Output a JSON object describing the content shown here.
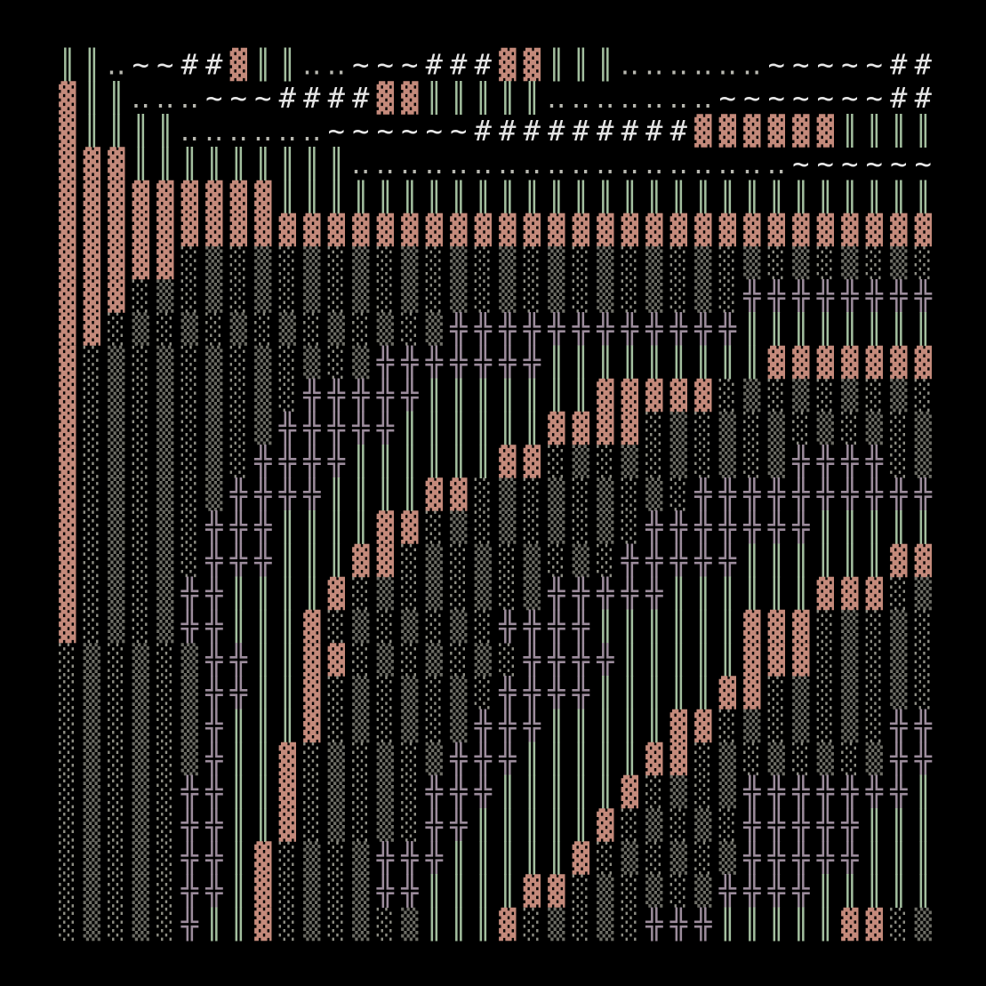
{
  "palette": {
    "▓": "#c48a7b",
    "║": "#a3bf9f",
    "‥": "#b8b8b0",
    "~": "#e6e6e6",
    "#": "#e6e6e6",
    "╬": "#9c8c9c",
    "░": "#8e8e84",
    "▒": "#6e6e66"
  },
  "grid": [
    [
      "║",
      "║",
      "‥",
      "~",
      "~",
      "#",
      "#",
      "▓",
      "║",
      "║",
      "‥",
      "‥",
      "~",
      "~",
      "~",
      "#",
      "#",
      "#",
      "▓",
      "▓",
      "║",
      "║",
      "║",
      "‥",
      "‥",
      "‥",
      "‥",
      "‥",
      "‥",
      "~",
      "~",
      "~",
      "~",
      "~",
      "#",
      "#"
    ],
    [
      "▓",
      "║",
      "║",
      "‥",
      "‥",
      "‥",
      "~",
      "~",
      "~",
      "#",
      "#",
      "#",
      "#",
      "▓",
      "▓",
      "║",
      "║",
      "║",
      "║",
      "║",
      "‥",
      "‥",
      "‥",
      "‥",
      "‥",
      "‥",
      "‥",
      "~",
      "~",
      "~",
      "~",
      "~",
      "~",
      "~",
      "#",
      "#"
    ],
    [
      "▓",
      "║",
      "║",
      "║",
      "║",
      "‥",
      "‥",
      "‥",
      "‥",
      "‥",
      "‥",
      "~",
      "~",
      "~",
      "~",
      "~",
      "~",
      "#",
      "#",
      "#",
      "#",
      "#",
      "#",
      "#",
      "#",
      "#",
      "▓",
      "▓",
      "▓",
      "▓",
      "▓",
      "▓",
      "║",
      "║",
      "║",
      "║"
    ],
    [
      "▓",
      "▓",
      "▓",
      "║",
      "║",
      "║",
      "║",
      "║",
      "║",
      "║",
      "║",
      "║",
      "‥",
      "‥",
      "‥",
      "‥",
      "‥",
      "‥",
      "‥",
      "‥",
      "‥",
      "‥",
      "‥",
      "‥",
      "‥",
      "‥",
      "‥",
      "‥",
      "‥",
      "‥",
      "~",
      "~",
      "~",
      "~",
      "~",
      "~"
    ],
    [
      "▓",
      "▓",
      "▓",
      "▓",
      "▓",
      "▓",
      "▓",
      "▓",
      "▓",
      "║",
      "║",
      "║",
      "║",
      "║",
      "║",
      "║",
      "║",
      "║",
      "║",
      "║",
      "║",
      "║",
      "║",
      "║",
      "║",
      "║",
      "║",
      "║",
      "║",
      "║",
      "║",
      "║",
      "║",
      "║",
      "║",
      "║"
    ],
    [
      "▓",
      "▓",
      "▓",
      "▓",
      "▓",
      "▓",
      "▓",
      "▓",
      "▓",
      "▓",
      "▓",
      "▓",
      "▓",
      "▓",
      "▓",
      "▓",
      "▓",
      "▓",
      "▓",
      "▓",
      "▓",
      "▓",
      "▓",
      "▓",
      "▓",
      "▓",
      "▓",
      "▓",
      "▓",
      "▓",
      "▓",
      "▓",
      "▓",
      "▓",
      "▓",
      "▓"
    ],
    [
      "▓",
      "▓",
      "▓",
      "▓",
      "▓",
      "░",
      "▒",
      "░",
      "▒",
      "░",
      "▒",
      "░",
      "▒",
      "░",
      "▒",
      "░",
      "▒",
      "░",
      "▒",
      "░",
      "▒",
      "░",
      "▒",
      "░",
      "▒",
      "░",
      "▒",
      "░",
      "▒",
      "░",
      "▒",
      "░",
      "▒",
      "░",
      "▒",
      "░"
    ],
    [
      "▓",
      "▓",
      "▓",
      "░",
      "▒",
      "░",
      "▒",
      "░",
      "▒",
      "░",
      "▒",
      "░",
      "▒",
      "░",
      "▒",
      "░",
      "▒",
      "░",
      "▒",
      "░",
      "▒",
      "░",
      "▒",
      "░",
      "▒",
      "░",
      "▒",
      "░",
      "╬",
      "╬",
      "╬",
      "╬",
      "╬",
      "╬",
      "╬",
      "╬"
    ],
    [
      "▓",
      "▓",
      "░",
      "▒",
      "░",
      "▒",
      "░",
      "▒",
      "░",
      "▒",
      "░",
      "▒",
      "░",
      "▒",
      "░",
      "▒",
      "╬",
      "╬",
      "╬",
      "╬",
      "╬",
      "╬",
      "╬",
      "╬",
      "╬",
      "╬",
      "╬",
      "╬",
      "║",
      "║",
      "║",
      "║",
      "║",
      "║",
      "║",
      "║"
    ],
    [
      "▓",
      "░",
      "▒",
      "░",
      "▒",
      "░",
      "▒",
      "░",
      "▒",
      "░",
      "▒",
      "░",
      "▒",
      "╬",
      "╬",
      "╬",
      "╬",
      "╬",
      "╬",
      "╬",
      "║",
      "║",
      "║",
      "║",
      "║",
      "║",
      "║",
      "║",
      "║",
      "▓",
      "▓",
      "▓",
      "▓",
      "▓",
      "▓",
      "▓"
    ],
    [
      "▓",
      "░",
      "▒",
      "░",
      "▒",
      "░",
      "▒",
      "░",
      "▒",
      "░",
      "╬",
      "╬",
      "╬",
      "╬",
      "╬",
      "║",
      "║",
      "║",
      "║",
      "║",
      "║",
      "║",
      "▓",
      "▓",
      "▓",
      "▓",
      "▓",
      "░",
      "▒",
      "░",
      "▒",
      "░",
      "▒",
      "░",
      "▒",
      "░"
    ],
    [
      "▓",
      "░",
      "▒",
      "░",
      "▒",
      "░",
      "▒",
      "░",
      "▒",
      "╬",
      "╬",
      "╬",
      "╬",
      "╬",
      "║",
      "║",
      "║",
      "║",
      "║",
      "║",
      "▓",
      "▓",
      "▓",
      "▓",
      "░",
      "▒",
      "░",
      "▒",
      "░",
      "▒",
      "░",
      "▒",
      "░",
      "▒",
      "░",
      "▒"
    ],
    [
      "▓",
      "░",
      "▒",
      "░",
      "▒",
      "░",
      "▒",
      "░",
      "╬",
      "╬",
      "╬",
      "╬",
      "║",
      "║",
      "║",
      "║",
      "║",
      "║",
      "▓",
      "▓",
      "░",
      "▒",
      "░",
      "▒",
      "░",
      "▒",
      "░",
      "▒",
      "░",
      "▒",
      "╬",
      "╬",
      "╬",
      "╬",
      "░",
      "▒"
    ],
    [
      "▓",
      "░",
      "▒",
      "░",
      "▒",
      "░",
      "▒",
      "╬",
      "╬",
      "╬",
      "╬",
      "║",
      "║",
      "║",
      "║",
      "▓",
      "▓",
      "░",
      "▒",
      "░",
      "▒",
      "░",
      "▒",
      "░",
      "▒",
      "░",
      "╬",
      "╬",
      "╬",
      "╬",
      "╬",
      "╬",
      "╬",
      "╬",
      "╬",
      "╬"
    ],
    [
      "▓",
      "░",
      "▒",
      "░",
      "▒",
      "░",
      "╬",
      "╬",
      "╬",
      "║",
      "║",
      "║",
      "║",
      "▓",
      "▓",
      "░",
      "▒",
      "░",
      "▒",
      "░",
      "▒",
      "░",
      "▒",
      "░",
      "╬",
      "╬",
      "╬",
      "╬",
      "╬",
      "╬",
      "╬",
      "║",
      "║",
      "║",
      "║",
      "║"
    ],
    [
      "▓",
      "░",
      "▒",
      "░",
      "▒",
      "░",
      "╬",
      "╬",
      "╬",
      "║",
      "║",
      "║",
      "▓",
      "▓",
      "░",
      "▒",
      "░",
      "▒",
      "░",
      "▒",
      "░",
      "▒",
      "░",
      "╬",
      "╬",
      "╬",
      "╬",
      "╬",
      "║",
      "║",
      "║",
      "║",
      "║",
      "║",
      "▓",
      "▓"
    ],
    [
      "▓",
      "░",
      "▒",
      "░",
      "▒",
      "╬",
      "╬",
      "║",
      "║",
      "║",
      "║",
      "▓",
      "░",
      "▒",
      "░",
      "▒",
      "░",
      "▒",
      "░",
      "▒",
      "╬",
      "╬",
      "╬",
      "╬",
      "╬",
      "║",
      "║",
      "║",
      "║",
      "║",
      "║",
      "▓",
      "▓",
      "▓",
      "░",
      "▒"
    ],
    [
      "▓",
      "░",
      "▒",
      "░",
      "▒",
      "╬",
      "╬",
      "║",
      "║",
      "║",
      "▓",
      "░",
      "▒",
      "░",
      "▒",
      "░",
      "▒",
      "░",
      "╬",
      "╬",
      "╬",
      "╬",
      "║",
      "║",
      "║",
      "║",
      "║",
      "║",
      "▓",
      "▓",
      "▓",
      "░",
      "▒",
      "░",
      "▒",
      "░"
    ],
    [
      "░",
      "▒",
      "░",
      "▒",
      "░",
      "▒",
      "╬",
      "╬",
      "║",
      "║",
      "▓",
      "▓",
      "░",
      "▒",
      "░",
      "▒",
      "░",
      "▒",
      "░",
      "╬",
      "╬",
      "╬",
      "╬",
      "║",
      "║",
      "║",
      "║",
      "║",
      "▓",
      "▓",
      "▓",
      "░",
      "▒",
      "░",
      "▒",
      "░"
    ],
    [
      "░",
      "▒",
      "░",
      "▒",
      "░",
      "▒",
      "╬",
      "╬",
      "║",
      "║",
      "▓",
      "░",
      "▒",
      "░",
      "▒",
      "░",
      "▒",
      "░",
      "╬",
      "╬",
      "╬",
      "╬",
      "║",
      "║",
      "║",
      "║",
      "║",
      "▓",
      "▓",
      "░",
      "▒",
      "░",
      "▒",
      "░",
      "▒",
      "░"
    ],
    [
      "░",
      "▒",
      "░",
      "▒",
      "░",
      "▒",
      "╬",
      "║",
      "║",
      "║",
      "▓",
      "░",
      "▒",
      "░",
      "▒",
      "░",
      "▒",
      "╬",
      "╬",
      "╬",
      "║",
      "║",
      "║",
      "║",
      "║",
      "▓",
      "▓",
      "░",
      "▒",
      "░",
      "▒",
      "░",
      "▒",
      "░",
      "╬",
      "╬"
    ],
    [
      "░",
      "▒",
      "░",
      "▒",
      "░",
      "▒",
      "╬",
      "║",
      "║",
      "▓",
      "░",
      "▒",
      "░",
      "▒",
      "░",
      "▒",
      "╬",
      "╬",
      "╬",
      "║",
      "║",
      "║",
      "║",
      "║",
      "▓",
      "▓",
      "░",
      "▒",
      "░",
      "▒",
      "░",
      "▒",
      "░",
      "▒",
      "╬",
      "╬"
    ],
    [
      "░",
      "▒",
      "░",
      "▒",
      "░",
      "╬",
      "╬",
      "║",
      "║",
      "▓",
      "░",
      "▒",
      "░",
      "▒",
      "░",
      "╬",
      "╬",
      "╬",
      "║",
      "║",
      "║",
      "║",
      "║",
      "▓",
      "░",
      "▒",
      "░",
      "▒",
      "╬",
      "╬",
      "╬",
      "╬",
      "╬",
      "╬",
      "╬",
      "║"
    ],
    [
      "░",
      "▒",
      "░",
      "▒",
      "░",
      "╬",
      "╬",
      "║",
      "║",
      "▓",
      "░",
      "▒",
      "░",
      "▒",
      "░",
      "╬",
      "╬",
      "║",
      "║",
      "║",
      "║",
      "║",
      "▓",
      "░",
      "▒",
      "░",
      "▒",
      "░",
      "╬",
      "╬",
      "╬",
      "╬",
      "╬",
      "║",
      "║",
      "║"
    ],
    [
      "░",
      "▒",
      "░",
      "▒",
      "░",
      "╬",
      "╬",
      "║",
      "▓",
      "░",
      "▒",
      "░",
      "▒",
      "╬",
      "╬",
      "╬",
      "║",
      "║",
      "║",
      "║",
      "║",
      "▓",
      "░",
      "▒",
      "░",
      "▒",
      "░",
      "▒",
      "╬",
      "╬",
      "╬",
      "╬",
      "╬",
      "║",
      "║",
      "║"
    ],
    [
      "░",
      "▒",
      "░",
      "▒",
      "░",
      "╬",
      "╬",
      "║",
      "▓",
      "░",
      "▒",
      "░",
      "▒",
      "╬",
      "╬",
      "║",
      "║",
      "║",
      "║",
      "▓",
      "▓",
      "░",
      "▒",
      "░",
      "▒",
      "░",
      "▒",
      "╬",
      "╬",
      "╬",
      "╬",
      "║",
      "║",
      "║",
      "║",
      "║"
    ],
    [
      "░",
      "▒",
      "░",
      "▒",
      "░",
      "╬",
      "║",
      "║",
      "▓",
      "░",
      "▒",
      "░",
      "▒",
      "░",
      "▒",
      "║",
      "║",
      "║",
      "▓",
      "░",
      "▒",
      "░",
      "▒",
      "░",
      "╬",
      "╬",
      "╬",
      "║",
      "║",
      "║",
      "║",
      "║",
      "▓",
      "▓",
      "░",
      "▒"
    ]
  ]
}
